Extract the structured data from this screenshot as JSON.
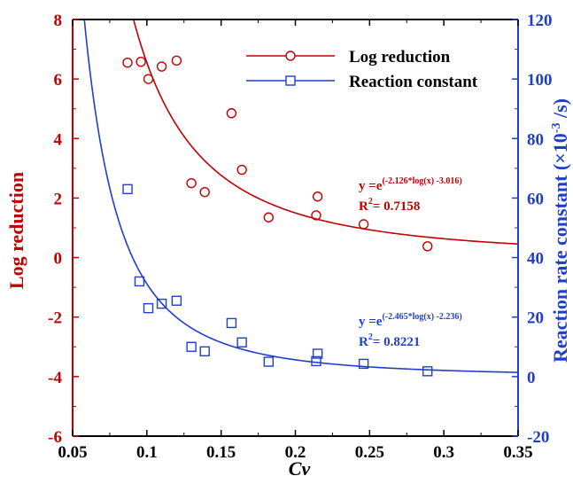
{
  "chart_data": {
    "type": "scatter",
    "xlabel": "Cv",
    "ylabel_left": "Log reduction",
    "ylabel_right": "Reaction rate constant (×10",
    "ylabel_right_sup": "-3",
    "ylabel_right_tail": " /s)",
    "xlim": [
      0.05,
      0.35
    ],
    "ylim_left": [
      -6,
      8
    ],
    "ylim_right": [
      -20,
      120
    ],
    "x_ticks": [
      "0.05",
      "0.1",
      "0.15",
      "0.2",
      "0.25",
      "0.3",
      "0.35"
    ],
    "y_ticks_left": [
      "-6",
      "-4",
      "-2",
      "0",
      "2",
      "4",
      "6",
      "8"
    ],
    "y_ticks_right": [
      "-20",
      "0",
      "20",
      "40",
      "60",
      "80",
      "100",
      "120"
    ],
    "legend_position": "top-right",
    "colors": {
      "red": "#c00000",
      "blue": "#1f3fc9",
      "axis": "#000000"
    },
    "series": [
      {
        "name": "Log reduction",
        "axis": "left",
        "marker": "circle",
        "color": "#c00000",
        "points": [
          [
            0.087,
            6.55
          ],
          [
            0.096,
            6.58
          ],
          [
            0.101,
            6.0
          ],
          [
            0.11,
            6.42
          ],
          [
            0.12,
            6.62
          ],
          [
            0.13,
            2.5
          ],
          [
            0.139,
            2.2
          ],
          [
            0.157,
            4.85
          ],
          [
            0.164,
            2.95
          ],
          [
            0.182,
            1.35
          ],
          [
            0.214,
            1.42
          ],
          [
            0.215,
            2.05
          ],
          [
            0.246,
            1.12
          ],
          [
            0.289,
            0.38
          ]
        ],
        "fit": {
          "a": -2.126,
          "b": -3.016,
          "equation_prefix": "y =e",
          "equation_exp": "(-2.126*log(x) -3.016)",
          "r2_label": "R",
          "r2_sup": "2",
          "r2_value": "= 0.7158"
        }
      },
      {
        "name": "Reaction constant",
        "axis": "right",
        "marker": "square",
        "color": "#1f3fc9",
        "points": [
          [
            0.087,
            63
          ],
          [
            0.095,
            32
          ],
          [
            0.101,
            23
          ],
          [
            0.11,
            24.5
          ],
          [
            0.12,
            25.5
          ],
          [
            0.13,
            10
          ],
          [
            0.139,
            8.5
          ],
          [
            0.157,
            18
          ],
          [
            0.164,
            11.5
          ],
          [
            0.182,
            5
          ],
          [
            0.214,
            5.2
          ],
          [
            0.215,
            7.7
          ],
          [
            0.246,
            4.3
          ],
          [
            0.289,
            1.8
          ]
        ],
        "fit": {
          "a": -2.465,
          "b": -2.236,
          "equation_prefix": "y =e",
          "equation_exp": "(-2.465*log(x) -2.236)",
          "r2_label": "R",
          "r2_sup": "2",
          "r2_value": "= 0.8221"
        }
      }
    ]
  }
}
